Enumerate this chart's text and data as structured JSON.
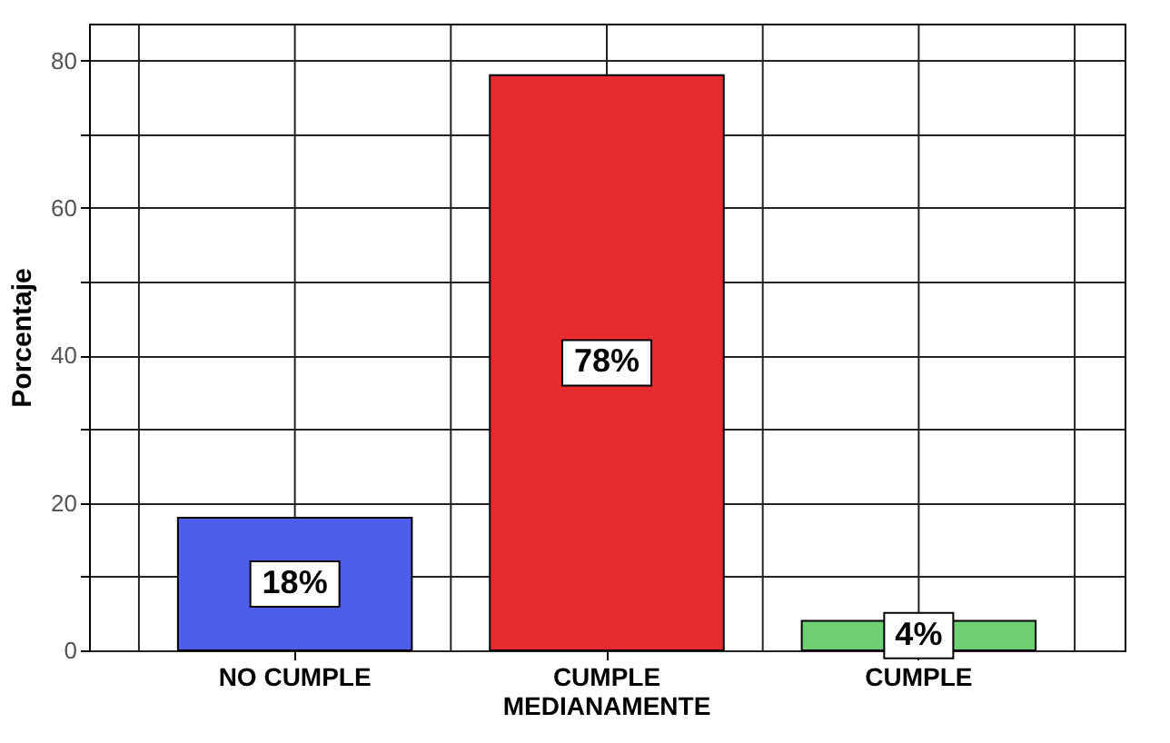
{
  "chart_data": {
    "type": "bar",
    "ylabel": "Porcentaje",
    "categories": [
      "NO CUMPLE",
      "CUMPLE MEDIANAMENTE",
      "CUMPLE"
    ],
    "values": [
      18,
      78,
      4
    ],
    "colors": [
      "#4f5ee8",
      "#e52b2e",
      "#6fcf73"
    ],
    "value_labels": [
      "18%",
      "78%",
      "4%"
    ],
    "ylim": [
      0,
      85
    ],
    "yticks": [
      0,
      {
        "value": 10,
        "label": null
      },
      20,
      {
        "value": 30,
        "label": null
      },
      40,
      {
        "value": 50,
        "label": null
      },
      60,
      {
        "value": 70,
        "label": null
      },
      80
    ],
    "grid": true
  }
}
